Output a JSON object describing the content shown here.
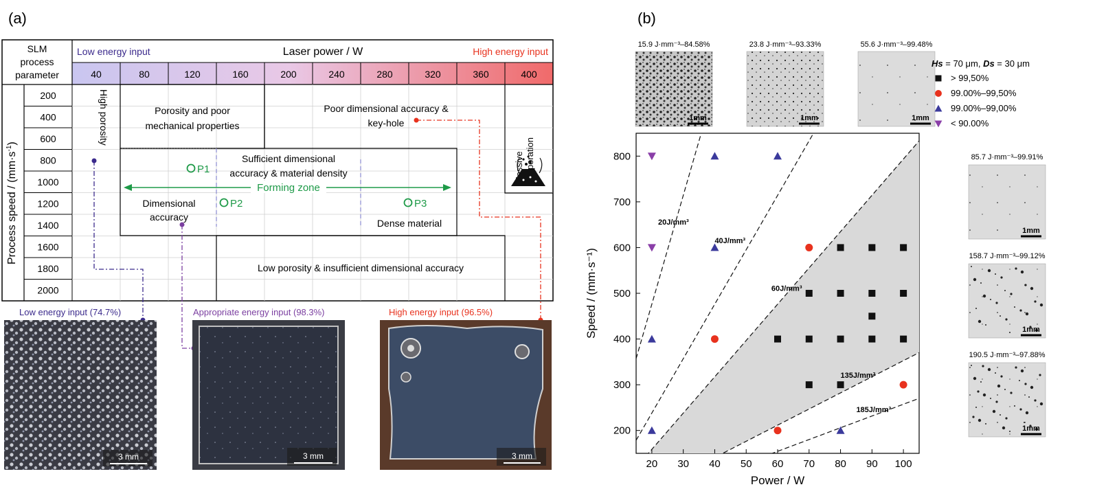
{
  "panel_labels": {
    "a": "(a)",
    "b": "(b)"
  },
  "colors": {
    "low": "#3b2a8c",
    "mid": "#7b3fa0",
    "high": "#e8321e",
    "green": "#1e9a48",
    "zone": "#d9d9d9"
  },
  "table": {
    "header_line1": "SLM",
    "header_line2": "process",
    "header_line3": "parameter",
    "low_energy": "Low energy input",
    "high_energy": "High energy input",
    "laser_power_label": "Laser power / W",
    "powers": [
      "40",
      "80",
      "120",
      "160",
      "200",
      "240",
      "280",
      "320",
      "360",
      "400"
    ],
    "speed_axis_label": "Process speed / (mm·s",
    "speed_axis_sup": "-1",
    "speed_axis_close": ")",
    "speeds": [
      "200",
      "400",
      "600",
      "800",
      "1000",
      "1200",
      "1400",
      "1600",
      "1800",
      "2000"
    ],
    "high_porosity": "High porosity",
    "massive_line1": "Massive",
    "massive_line2": "evaporation",
    "porosity_poor_1": "Porosity and poor",
    "porosity_poor_2": "mechanical properties",
    "poor_dim_1": "Poor dimensional accuracy &",
    "poor_dim_2": "key-hole",
    "sufficient_1": "Sufficient dimensional",
    "sufficient_2": "accuracy & material density",
    "forming_zone": "Forming zone",
    "dim_acc_1": "Dimensional",
    "dim_acc_2": "accuracy",
    "dense_material": "Dense material",
    "low_porosity": "Low porosity & insufficient dimensional accuracy",
    "p1": "P1",
    "p2": "P2",
    "p3": "P3"
  },
  "micrographs_a": [
    {
      "caption": "Low energy input (74.7%)",
      "scale": "3 mm"
    },
    {
      "caption": "Appropriate energy input (98.3%)",
      "scale": "3 mm"
    },
    {
      "caption": "High energy input (96.5%)",
      "scale": "3 mm"
    }
  ],
  "micrographs_b_top": [
    {
      "caption": "15.9 J·mm⁻³–84.58%",
      "scale": "1mm"
    },
    {
      "caption": "23.8 J·mm⁻³–93.33%",
      "scale": "1mm"
    },
    {
      "caption": "55.6 J·mm⁻³–99.48%",
      "scale": "1mm"
    }
  ],
  "micrographs_b_side": [
    {
      "caption": "85.7 J·mm⁻³–99.91%",
      "scale": "1mm"
    },
    {
      "caption": "158.7 J·mm⁻³–99.12%",
      "scale": "1mm"
    },
    {
      "caption": "190.5 J·mm⁻³–97.88%",
      "scale": "1mm"
    }
  ],
  "legend_b": {
    "hs_label": "Hs",
    "hs_value": " = 70 μm, ",
    "ds_label": "Ds",
    "ds_value": " = 30 μm",
    "entries": [
      {
        "label": "> 99,50%",
        "marker": "square",
        "color": "#111111"
      },
      {
        "label": "99.00%–99,50%",
        "marker": "circle",
        "color": "#e8321e"
      },
      {
        "label": "99.00%–99,00%",
        "marker": "triangle-up",
        "color": "#3b3a9c"
      },
      {
        "label": "< 90.00%",
        "marker": "triangle-down",
        "color": "#8a3fa8"
      }
    ]
  },
  "chart_data": {
    "type": "scatter",
    "xlabel": "Power / W",
    "ylabel": "Speed / (mm·s⁻¹)",
    "xlim": [
      15,
      105
    ],
    "ylim": [
      150,
      850
    ],
    "xticks": [
      20,
      30,
      40,
      50,
      60,
      70,
      80,
      90,
      100
    ],
    "yticks": [
      200,
      300,
      400,
      500,
      600,
      700,
      800
    ],
    "series": [
      {
        "name": "> 99,50%",
        "marker": "square",
        "color": "#111111",
        "points": [
          [
            80,
            600
          ],
          [
            90,
            600
          ],
          [
            100,
            600
          ],
          [
            70,
            500
          ],
          [
            80,
            500
          ],
          [
            90,
            500
          ],
          [
            100,
            500
          ],
          [
            90,
            450
          ],
          [
            60,
            400
          ],
          [
            70,
            400
          ],
          [
            80,
            400
          ],
          [
            90,
            400
          ],
          [
            100,
            400
          ],
          [
            70,
            300
          ],
          [
            80,
            300
          ]
        ]
      },
      {
        "name": "99.00%–99,50%",
        "marker": "circle",
        "color": "#e8321e",
        "points": [
          [
            70,
            600
          ],
          [
            40,
            400
          ],
          [
            60,
            200
          ],
          [
            100,
            300
          ]
        ]
      },
      {
        "name": "99.00%–99,00%",
        "marker": "triangle-up",
        "color": "#3b3a9c",
        "points": [
          [
            40,
            800
          ],
          [
            60,
            800
          ],
          [
            40,
            600
          ],
          [
            20,
            400
          ],
          [
            20,
            200
          ],
          [
            80,
            200
          ]
        ]
      },
      {
        "name": "< 90.00%",
        "marker": "triangle-down",
        "color": "#8a3fa8",
        "points": [
          [
            20,
            800
          ],
          [
            20,
            600
          ]
        ]
      }
    ],
    "energy_lines": [
      {
        "label": "20J/mm³",
        "energy": 20
      },
      {
        "label": "40J/mm³",
        "energy": 40
      },
      {
        "label": "60J/mm³",
        "energy": 60
      },
      {
        "label": "135J/mm³",
        "energy": 135
      },
      {
        "label": "185J/mm³",
        "energy": 185
      }
    ],
    "shaded_region": "between 60 and 135 J/mm³ lines"
  }
}
